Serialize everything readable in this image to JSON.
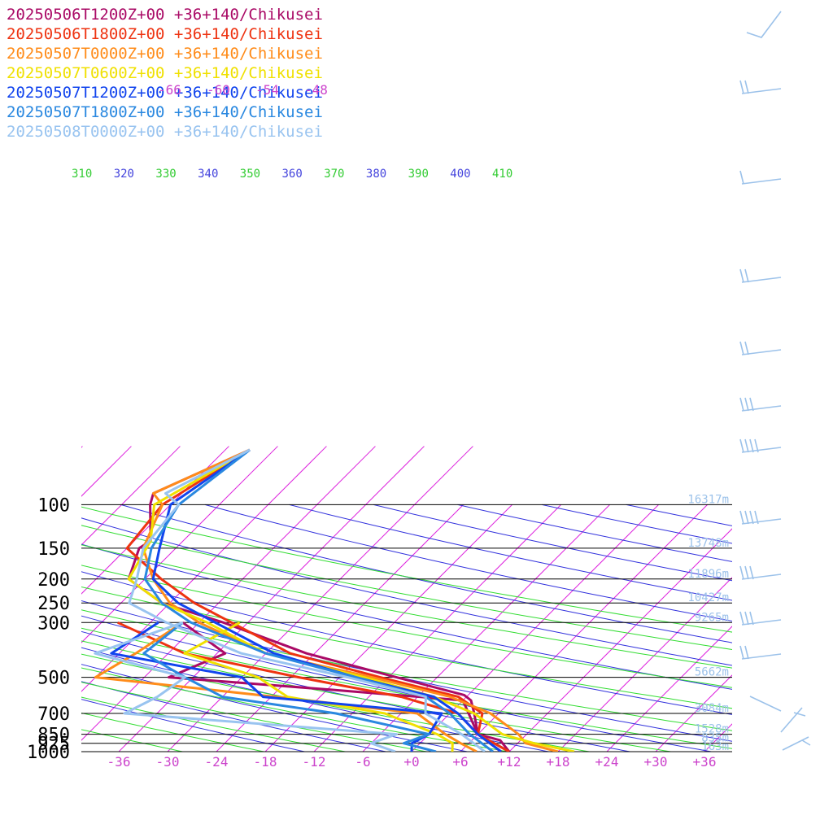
{
  "chart_data": {
    "type": "line",
    "diagram": "skew-T log-P",
    "pressure_levels": [
      100,
      150,
      200,
      250,
      300,
      500,
      700,
      850,
      925,
      1000
    ],
    "x_ticks": [
      "-36",
      "-30",
      "-24",
      "-18",
      "-12",
      "-6",
      "+0",
      "+6",
      "+12",
      "+18",
      "+24",
      "+30",
      "+36"
    ],
    "x_tick_values": [
      -36,
      -30,
      -24,
      -18,
      -12,
      -6,
      0,
      6,
      12,
      18,
      24,
      30,
      36
    ],
    "upper_temp_labels": [
      "-66",
      "-60",
      "-54",
      "-48"
    ],
    "upper_temp_values": [
      -66,
      -60,
      -54,
      -48
    ],
    "theta_labels": [
      "310",
      "320",
      "330",
      "340",
      "350",
      "360",
      "370",
      "380",
      "390",
      "400",
      "410"
    ],
    "height_labels": [
      {
        "p": 100,
        "text": "16317m"
      },
      {
        "p": 150,
        "text": "13748m"
      },
      {
        "p": 200,
        "text": "11896m"
      },
      {
        "p": 250,
        "text": "10427m"
      },
      {
        "p": 300,
        "text": "9265m"
      },
      {
        "p": 500,
        "text": "5662m"
      },
      {
        "p": 700,
        "text": "3084m"
      },
      {
        "p": 850,
        "text": "1528m"
      },
      {
        "p": 925,
        "text": "835m"
      },
      {
        "p": 1000,
        "text": "163m"
      }
    ],
    "series": [
      {
        "name": "20250506T1200Z+00 +36+140/Chikusei",
        "color": "#aa0a66",
        "temp": [
          [
            60,
            -57
          ],
          [
            90,
            -63.5
          ],
          [
            100,
            -62.5
          ],
          [
            140,
            -58
          ],
          [
            150,
            -58.5
          ],
          [
            200,
            -56
          ],
          [
            250,
            -49
          ],
          [
            300,
            -39
          ],
          [
            400,
            -25
          ],
          [
            500,
            -11
          ],
          [
            590,
            -0.5
          ],
          [
            620,
            1
          ],
          [
            700,
            3
          ],
          [
            850,
            6
          ],
          [
            900,
            9.5
          ],
          [
            1000,
            12
          ]
        ],
        "dew": [
          [
            300,
            -44
          ],
          [
            400,
            -35
          ],
          [
            500,
            -39
          ],
          [
            560,
            -18
          ],
          [
            620,
            0
          ],
          [
            850,
            6
          ],
          [
            1000,
            12
          ]
        ]
      },
      {
        "name": "20250506T1800Z+00 +36+140/Chikusei",
        "color": "#ee3311",
        "temp": [
          [
            60,
            -57
          ],
          [
            100,
            -61
          ],
          [
            150,
            -60
          ],
          [
            200,
            -52
          ],
          [
            250,
            -45
          ],
          [
            300,
            -38
          ],
          [
            400,
            -27
          ],
          [
            500,
            -13
          ],
          [
            600,
            -1
          ],
          [
            700,
            4
          ],
          [
            850,
            6
          ],
          [
            1000,
            12
          ]
        ],
        "dew": [
          [
            300,
            -52
          ],
          [
            400,
            -40
          ],
          [
            500,
            -23
          ],
          [
            600,
            -8
          ],
          [
            700,
            1
          ],
          [
            850,
            6
          ],
          [
            1000,
            11
          ]
        ]
      },
      {
        "name": "20250507T0000Z+00 +36+140/Chikusei",
        "color": "#ff8c1a",
        "temp": [
          [
            60,
            -57
          ],
          [
            90,
            -63.5
          ],
          [
            100,
            -61
          ],
          [
            150,
            -58
          ],
          [
            200,
            -53
          ],
          [
            250,
            -48
          ],
          [
            300,
            -42
          ],
          [
            400,
            -30
          ],
          [
            500,
            -14
          ],
          [
            600,
            -2
          ],
          [
            700,
            5
          ],
          [
            850,
            11
          ],
          [
            925,
            13
          ],
          [
            1000,
            18
          ]
        ],
        "dew": [
          [
            300,
            -44
          ],
          [
            400,
            -46
          ],
          [
            500,
            -48
          ],
          [
            620,
            -19
          ],
          [
            700,
            -4
          ],
          [
            850,
            2
          ],
          [
            925,
            5
          ],
          [
            1000,
            8
          ]
        ]
      },
      {
        "name": "20250507T0600Z+00 +36+140/Chikusei",
        "color": "#f0e000",
        "temp": [
          [
            60,
            -57
          ],
          [
            100,
            -62
          ],
          [
            140,
            -58
          ],
          [
            200,
            -56
          ],
          [
            250,
            -49
          ],
          [
            300,
            -41
          ],
          [
            400,
            -30
          ],
          [
            500,
            -15
          ],
          [
            600,
            -4
          ],
          [
            700,
            3
          ],
          [
            850,
            9
          ],
          [
            925,
            14
          ],
          [
            1000,
            20
          ]
        ],
        "dew": [
          [
            300,
            -37
          ],
          [
            400,
            -40
          ],
          [
            500,
            -28
          ],
          [
            600,
            -22
          ],
          [
            700,
            -8
          ],
          [
            850,
            1
          ],
          [
            925,
            4
          ],
          [
            1000,
            5
          ]
        ]
      },
      {
        "name": "20250507T1200Z+00 +36+140/Chikusei",
        "color": "#1144ee",
        "temp": [
          [
            60,
            -57
          ],
          [
            100,
            -60
          ],
          [
            150,
            -56
          ],
          [
            200,
            -53
          ],
          [
            250,
            -47
          ],
          [
            300,
            -40
          ],
          [
            400,
            -29
          ],
          [
            500,
            -16
          ],
          [
            600,
            -4
          ],
          [
            700,
            1
          ],
          [
            850,
            6
          ],
          [
            1000,
            11
          ]
        ],
        "dew": [
          [
            300,
            -47
          ],
          [
            400,
            -49
          ],
          [
            500,
            -30
          ],
          [
            600,
            -25
          ],
          [
            700,
            -1
          ],
          [
            850,
            0
          ],
          [
            925,
            -1
          ],
          [
            1000,
            0
          ]
        ]
      },
      {
        "name": "20250507T1800Z+00 +36+140/Chikusei",
        "color": "#2a88e0",
        "temp": [
          [
            60,
            -57
          ],
          [
            100,
            -59
          ],
          [
            150,
            -57
          ],
          [
            200,
            -54
          ],
          [
            250,
            -49
          ],
          [
            300,
            -43
          ],
          [
            400,
            -30
          ],
          [
            500,
            -16
          ],
          [
            600,
            -5
          ],
          [
            700,
            0
          ],
          [
            850,
            5
          ],
          [
            1000,
            10
          ]
        ],
        "dew": [
          [
            300,
            -44
          ],
          [
            400,
            -45
          ],
          [
            500,
            -37
          ],
          [
            600,
            -30
          ],
          [
            700,
            -14
          ],
          [
            850,
            0
          ],
          [
            925,
            -2
          ],
          [
            1000,
            3
          ]
        ]
      },
      {
        "name": "20250508T0000Z+00 +36+140/Chikusei",
        "color": "#99c4f0",
        "temp": [
          [
            60,
            -57
          ],
          [
            90,
            -62
          ],
          [
            100,
            -59
          ],
          [
            150,
            -58
          ],
          [
            200,
            -55
          ],
          [
            250,
            -53
          ],
          [
            300,
            -46
          ],
          [
            400,
            -33
          ],
          [
            500,
            -17
          ],
          [
            600,
            -5
          ],
          [
            700,
            -3
          ],
          [
            850,
            4
          ],
          [
            1000,
            9
          ]
        ],
        "dew": [
          [
            300,
            -44
          ],
          [
            400,
            -51
          ],
          [
            500,
            -37
          ],
          [
            600,
            -38
          ],
          [
            700,
            -40
          ],
          [
            850,
            -4
          ],
          [
            925,
            -6
          ],
          [
            1000,
            -2
          ]
        ]
      }
    ]
  }
}
